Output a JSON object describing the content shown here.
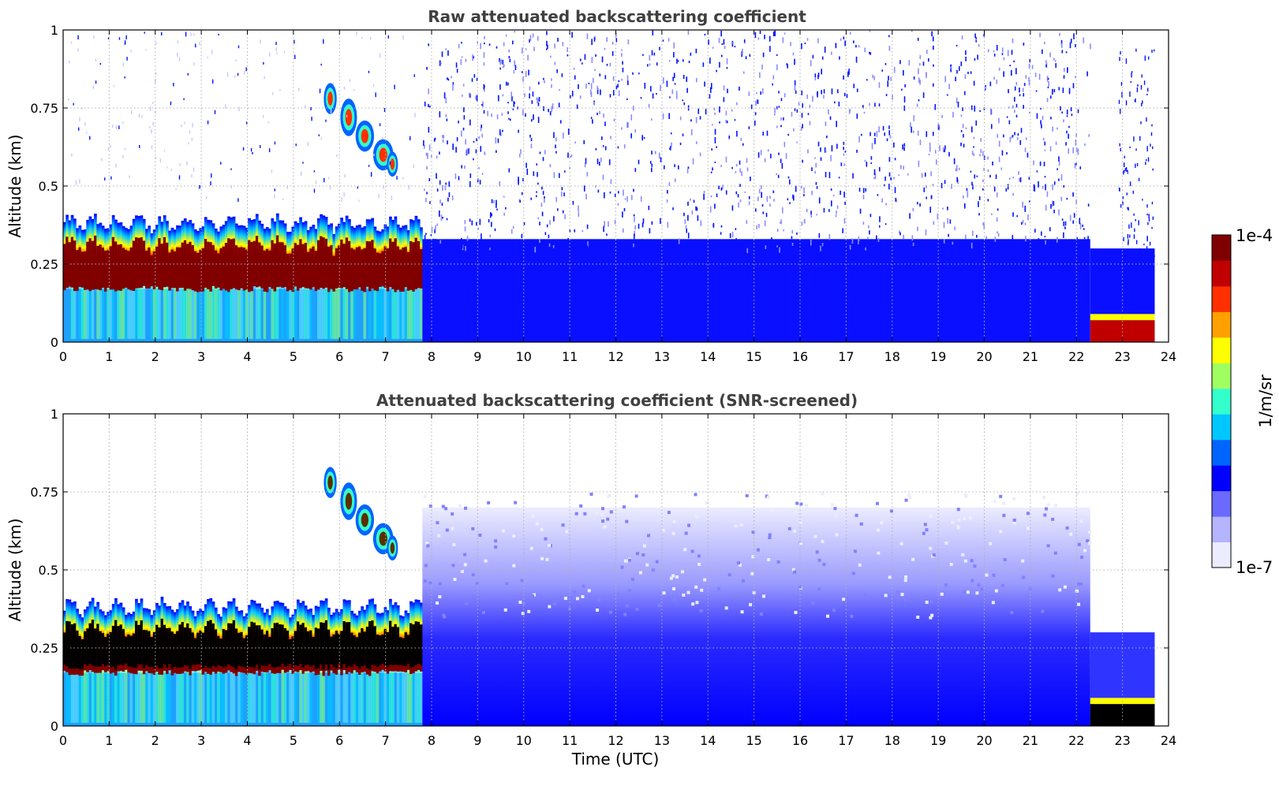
{
  "chart_data": [
    {
      "type": "heatmap",
      "title": "Raw attenuated backscattering coefficient",
      "xlabel": "",
      "ylabel": "Altitude (km)",
      "xlim": [
        0,
        24
      ],
      "ylim": [
        0,
        1
      ],
      "x_ticks": [
        "0",
        "1",
        "2",
        "3",
        "4",
        "5",
        "6",
        "7",
        "8",
        "9",
        "10",
        "11",
        "12",
        "13",
        "14",
        "15",
        "16",
        "17",
        "18",
        "19",
        "20",
        "21",
        "22",
        "23",
        "24"
      ],
      "y_ticks": [
        "0",
        "0.25",
        "0.5",
        "0.75",
        "1"
      ],
      "grid": true,
      "features": [
        {
          "name": "boundary-layer",
          "t_start": 0,
          "t_end": 7.8,
          "alt_low": 0.17,
          "alt_high": 0.38,
          "level": "1e-4"
        },
        {
          "name": "elevated-layer",
          "t_start": 5.7,
          "t_end": 7.3,
          "alt_low": 0.55,
          "alt_high": 0.82,
          "level": "1e-5"
        },
        {
          "name": "noise-region",
          "t_start": 7.8,
          "t_end": 22.3,
          "alt_low": 0.0,
          "alt_high": 1.0,
          "level": "1e-6"
        },
        {
          "name": "surface-layer",
          "t_start": 22.3,
          "t_end": 23.7,
          "alt_low": 0.0,
          "alt_high": 0.07,
          "level": "1e-4"
        }
      ]
    },
    {
      "type": "heatmap",
      "title": "Attenuated backscattering coefficient (SNR-screened)",
      "xlabel": "Time (UTC)",
      "ylabel": "Altitude (km)",
      "xlim": [
        0,
        24
      ],
      "ylim": [
        0,
        1
      ],
      "x_ticks": [
        "0",
        "1",
        "2",
        "3",
        "4",
        "5",
        "6",
        "7",
        "8",
        "9",
        "10",
        "11",
        "12",
        "13",
        "14",
        "15",
        "16",
        "17",
        "18",
        "19",
        "20",
        "21",
        "22",
        "23",
        "24"
      ],
      "y_ticks": [
        "0",
        "0.25",
        "0.5",
        "0.75",
        "1"
      ],
      "grid": true,
      "features": [
        {
          "name": "boundary-layer",
          "t_start": 0,
          "t_end": 7.8,
          "alt_low": 0.17,
          "alt_high": 0.38,
          "level": "saturated"
        },
        {
          "name": "elevated-layer",
          "t_start": 5.7,
          "t_end": 7.3,
          "alt_low": 0.55,
          "alt_high": 0.82,
          "level": "1e-5"
        },
        {
          "name": "screened-region",
          "t_start": 7.8,
          "t_end": 22.3,
          "alt_low": 0.0,
          "alt_high": 0.7,
          "level": "1e-7"
        },
        {
          "name": "surface-layer",
          "t_start": 22.3,
          "t_end": 23.7,
          "alt_low": 0.0,
          "alt_high": 0.07,
          "level": "saturated"
        }
      ]
    }
  ],
  "colorbar": {
    "label": "1/m/sr",
    "max_label": "1e-4",
    "min_label": "1e-7",
    "colors": [
      "#ececff",
      "#b4b4ff",
      "#6a6aff",
      "#0000ff",
      "#0064ff",
      "#00c8ff",
      "#33ffcc",
      "#a0ff60",
      "#ffff00",
      "#ffa000",
      "#ff3000",
      "#c00000",
      "#800000"
    ]
  }
}
